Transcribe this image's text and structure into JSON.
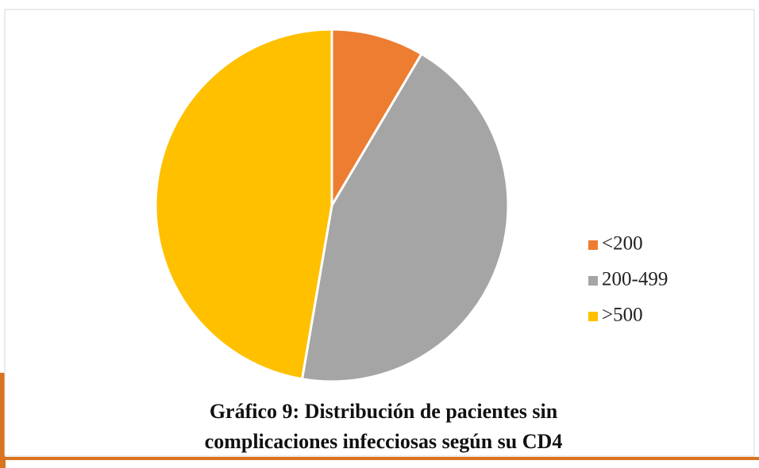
{
  "chart_data": {
    "type": "pie",
    "title": [
      "Gráfico 9: Distribución de pacientes sin",
      "complicaciones infecciosas según su CD4"
    ],
    "categories": [
      "<200",
      "200-499",
      ">500"
    ],
    "values": [
      8.5,
      44.2,
      47.3
    ],
    "colors": [
      "#ed7d31",
      "#a5a5a5",
      "#ffc000"
    ],
    "legend": "right"
  }
}
